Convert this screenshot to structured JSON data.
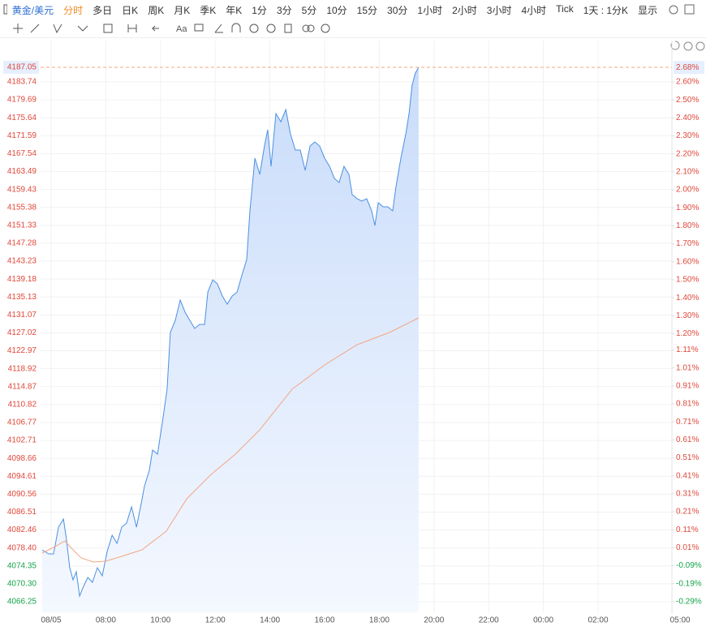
{
  "toolbar": {
    "symbol": "黄金/美元",
    "periods": [
      "分时",
      "多日",
      "日K",
      "周K",
      "月K",
      "季K",
      "年K",
      "1分",
      "3分",
      "5分",
      "10分",
      "15分",
      "30分",
      "1小时",
      "2小时",
      "3小时",
      "4小时",
      "Tick"
    ],
    "active": 0,
    "range": "1天 : 1分K",
    "display": "显示",
    "text_tool": "Aa"
  },
  "chart_data": {
    "type": "line",
    "series": [
      {
        "color": "#4a90e2",
        "x": [
          -0.33,
          -0.09,
          0.09,
          0.27,
          0.45,
          0.56,
          0.68,
          0.8,
          0.92,
          1.04,
          1.16,
          1.34,
          1.51,
          1.69,
          1.87,
          2.05,
          2.23,
          2.41,
          2.58,
          2.76,
          2.94,
          3.12,
          3.3,
          3.41,
          3.59,
          3.71,
          3.89,
          4.07,
          4.24,
          4.36,
          4.54,
          4.72,
          4.9,
          5.07,
          5.25,
          5.43,
          5.61,
          5.73,
          5.91,
          6.08,
          6.26,
          6.44,
          6.62,
          6.8,
          6.97,
          7.15,
          7.27,
          7.45,
          7.63,
          7.8,
          7.92,
          8.04,
          8.22,
          8.4,
          8.58,
          8.75,
          8.93,
          9.11,
          9.29,
          9.47,
          9.64,
          9.82,
          10.0,
          10.18,
          10.36,
          10.53,
          10.71,
          10.89,
          11.01,
          11.19,
          11.36,
          11.54,
          11.72,
          11.84,
          11.96,
          12.14,
          12.31,
          12.49,
          12.61,
          12.79,
          12.97,
          13.09,
          13.2,
          13.32,
          13.44
        ],
        "values": [
          4077.98,
          4077.06,
          4077.06,
          4083.11,
          4084.95,
          4080.36,
          4073.95,
          4071.2,
          4073.03,
          4067.53,
          4069.37,
          4071.75,
          4070.65,
          4073.95,
          4072.12,
          4077.61,
          4081.28,
          4079.45,
          4083.11,
          4084.03,
          4087.69,
          4083.11,
          4088.61,
          4092.28,
          4095.94,
          4100.52,
          4099.61,
          4106.94,
          4114.27,
          4127.1,
          4129.85,
          4134.43,
          4131.68,
          4129.85,
          4128.02,
          4128.93,
          4128.93,
          4136.26,
          4139.01,
          4138.1,
          4135.35,
          4133.52,
          4135.35,
          4136.26,
          4139.93,
          4143.6,
          4154.59,
          4166.51,
          4162.84,
          4169.26,
          4172.92,
          4164.67,
          4176.59,
          4174.75,
          4177.5,
          4172.01,
          4168.34,
          4168.34,
          4163.76,
          4169.26,
          4170.17,
          4169.26,
          4166.51,
          4164.67,
          4161.92,
          4161.01,
          4164.67,
          4162.84,
          4158.26,
          4157.34,
          4156.79,
          4157.34,
          4154.59,
          4151.29,
          4156.43,
          4155.51,
          4155.51,
          4154.59,
          4160.09,
          4166.51,
          4172.01,
          4176.59,
          4183.0,
          4185.75,
          4187.05
        ],
        "area": true
      },
      {
        "color": "#f4a582",
        "x": [
          -0.33,
          0.09,
          0.5,
          0.8,
          1.1,
          1.54,
          1.99,
          2.58,
          3.32,
          4.21,
          4.96,
          5.85,
          6.74,
          7.63,
          8.81,
          10.0,
          11.19,
          12.37,
          13.44
        ],
        "values": [
          4077.25,
          4078.53,
          4080.0,
          4077.98,
          4076.15,
          4075.23,
          4075.41,
          4076.51,
          4077.98,
          4082.2,
          4089.53,
          4095.03,
          4099.61,
          4105.11,
          4114.27,
          4119.77,
          4124.35,
          4127.1,
          4130.4
        ],
        "area": false
      }
    ],
    "xlim": [
      -0.386,
      22.7
    ],
    "xticks": [
      {
        "value": 0,
        "label": "08/05"
      },
      {
        "value": 2,
        "label": "08:00"
      },
      {
        "value": 4,
        "label": "10:00"
      },
      {
        "value": 6,
        "label": "12:00"
      },
      {
        "value": 8,
        "label": "14:00"
      },
      {
        "value": 10,
        "label": "16:00"
      },
      {
        "value": 12,
        "label": "18:00"
      },
      {
        "value": 14,
        "label": "20:00"
      },
      {
        "value": 16,
        "label": "22:00"
      },
      {
        "value": 18,
        "label": "00:00"
      },
      {
        "value": 20,
        "label": "02:00"
      },
      {
        "value": 23,
        "label": "05:00"
      }
    ],
    "ylim": [
      4063.87,
      4193.09
    ],
    "yticks": [
      4183.74,
      4179.69,
      4175.64,
      4171.59,
      4167.54,
      4163.49,
      4159.43,
      4155.38,
      4151.33,
      4147.28,
      4143.23,
      4139.18,
      4135.13,
      4131.07,
      4127.02,
      4122.97,
      4118.92,
      4114.87,
      4110.82,
      4106.77,
      4102.71,
      4098.66,
      4094.61,
      4090.56,
      4086.51,
      4082.46,
      {
        "value": 4078.4,
        "label": "4078.40"
      },
      4074.35,
      {
        "value": 4070.3,
        "label": "4070.30"
      },
      4066.25
    ],
    "y2lim": [
      -0.349,
      2.83
    ],
    "y2ticks": [
      {
        "value": 2.6,
        "label": "2.60%"
      },
      {
        "value": 2.5,
        "label": "2.50%"
      },
      {
        "value": 2.4,
        "label": "2.40%"
      },
      {
        "value": 2.3,
        "label": "2.30%"
      },
      {
        "value": 2.2,
        "label": "2.20%"
      },
      {
        "value": 2.1,
        "label": "2.10%"
      },
      {
        "value": 2.0,
        "label": "2.00%"
      },
      {
        "value": 1.9,
        "label": "1.90%"
      },
      {
        "value": 1.8,
        "label": "1.80%"
      },
      {
        "value": 1.7,
        "label": "1.70%"
      },
      {
        "value": 1.6,
        "label": "1.60%"
      },
      {
        "value": 1.5,
        "label": "1.50%"
      },
      {
        "value": 1.4,
        "label": "1.40%"
      },
      {
        "value": 1.3,
        "label": "1.30%"
      },
      {
        "value": 1.2,
        "label": "1.20%"
      },
      {
        "value": 1.11,
        "label": "1.11%"
      },
      {
        "value": 1.01,
        "label": "1.01%"
      },
      {
        "value": 0.91,
        "label": "0.91%"
      },
      {
        "value": 0.81,
        "label": "0.81%"
      },
      {
        "value": 0.71,
        "label": "0.71%"
      },
      {
        "value": 0.61,
        "label": "0.61%"
      },
      {
        "value": 0.51,
        "label": "0.51%"
      },
      {
        "value": 0.41,
        "label": "0.41%"
      },
      {
        "value": 0.31,
        "label": "0.31%"
      },
      {
        "value": 0.21,
        "label": "0.21%"
      },
      {
        "value": 0.11,
        "label": "0.11%"
      },
      {
        "value": 0.01,
        "label": "0.01%"
      },
      {
        "value": -0.09,
        "label": "-0.09%"
      },
      {
        "value": -0.19,
        "label": "-0.19%"
      },
      {
        "value": -0.29,
        "label": "-0.29%"
      }
    ],
    "last_value": 4187.05,
    "last_change": 2.68,
    "last_change_label": "2.68%",
    "grid": true,
    "up_color": "#e0483b",
    "down_color": "#15a34a"
  }
}
